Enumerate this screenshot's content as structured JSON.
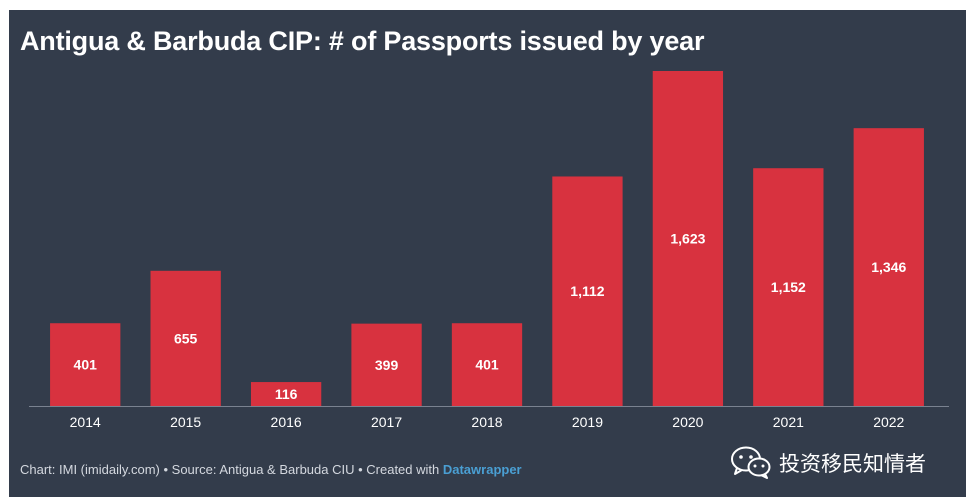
{
  "chart_data": {
    "type": "bar",
    "title": "Antigua & Barbuda CIP: # of Passports issued by year",
    "categories": [
      "2014",
      "2015",
      "2016",
      "2017",
      "2018",
      "2019",
      "2020",
      "2021",
      "2022"
    ],
    "values": [
      401,
      655,
      116,
      399,
      401,
      1112,
      1623,
      1152,
      1346
    ],
    "value_labels": [
      "401",
      "655",
      "116",
      "399",
      "401",
      "1,112",
      "1,623",
      "1,152",
      "1,346"
    ],
    "xlabel": "",
    "ylabel": "",
    "ylim": [
      0,
      1623
    ],
    "grid": false,
    "legend": "none",
    "bar_color": "#d8323f",
    "background_color": "#333c4b"
  },
  "footer": {
    "prefix": "Chart: IMI (imidaily.com) • Source: Antigua & Barbuda CIU • Created with ",
    "brand": "Datawrapper"
  },
  "watermark": {
    "icon": "wechat-icon",
    "text": "投资移民知情者"
  }
}
